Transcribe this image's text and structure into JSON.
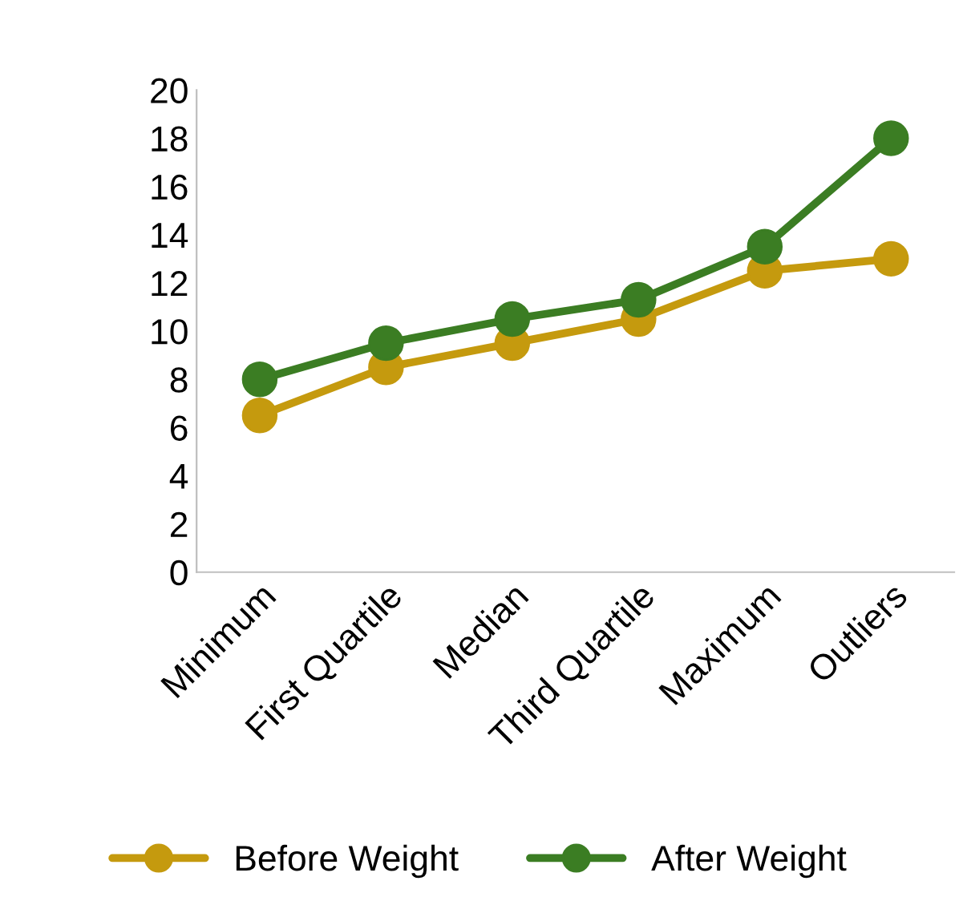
{
  "chart_data": {
    "type": "line",
    "categories": [
      "Minimum",
      "First Quartile",
      "Median",
      "Third Quartile",
      "Maximum",
      "Outliers"
    ],
    "series": [
      {
        "name": "Before Weight",
        "color": "#c59a0e",
        "values": [
          6.5,
          8.5,
          9.5,
          10.5,
          12.5,
          13
        ]
      },
      {
        "name": "After Weight",
        "color": "#3b7d23",
        "values": [
          8,
          9.5,
          10.5,
          11.3,
          13.5,
          18
        ]
      }
    ],
    "ylim": [
      0,
      20
    ],
    "yticks": [
      0,
      2,
      4,
      6,
      8,
      10,
      12,
      14,
      16,
      18,
      20
    ],
    "grid": false,
    "legend": "bottom",
    "marker": "circle",
    "line_style": "solid"
  }
}
